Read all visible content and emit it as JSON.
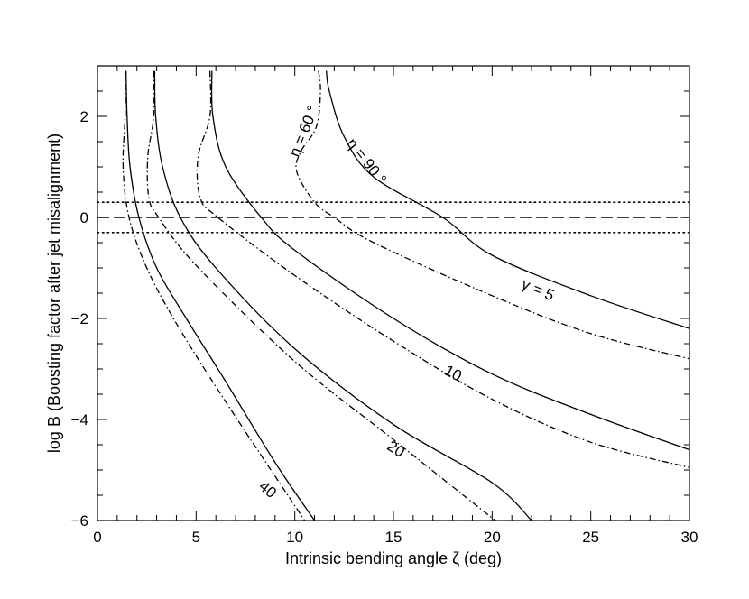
{
  "chart_data": {
    "type": "line",
    "title": "",
    "xlabel": "Intrinsic bending angle ζ (deg)",
    "ylabel": "log B (Boosting factor after jet misalignment)",
    "xlim": [
      0,
      30
    ],
    "ylim": [
      -6,
      3
    ],
    "x_ticks": [
      0,
      5,
      10,
      15,
      20,
      25,
      30
    ],
    "y_ticks": [
      -6,
      -4,
      -2,
      0,
      2
    ],
    "grid": false,
    "legend": "none",
    "reference_lines": [
      {
        "y": 0,
        "style": "dashed"
      },
      {
        "y": 0.3,
        "style": "dotted"
      },
      {
        "y": -0.3,
        "style": "dotted"
      }
    ],
    "series": [
      {
        "line_style": "solid",
        "points": [
          [
            11.6,
            2.9
          ],
          [
            11.75,
            2.5
          ],
          [
            12.5,
            1.6
          ],
          [
            14,
            0.8
          ],
          [
            17.5,
            0
          ],
          [
            20,
            -0.75
          ],
          [
            25,
            -1.55
          ],
          [
            30,
            -2.2
          ]
        ]
      },
      {
        "line_style": "dashdot",
        "points": [
          [
            11.2,
            2.9
          ],
          [
            11.3,
            2.5
          ],
          [
            11.1,
            1.8
          ],
          [
            10.3,
            1.3
          ],
          [
            10.1,
            0.9
          ],
          [
            11,
            0.3
          ],
          [
            12,
            0
          ],
          [
            14,
            -0.5
          ],
          [
            20,
            -1.55
          ],
          [
            25,
            -2.3
          ],
          [
            30,
            -2.8
          ]
        ]
      },
      {
        "line_style": "solid",
        "points": [
          [
            5.8,
            2.9
          ],
          [
            5.85,
            2
          ],
          [
            6.5,
            1
          ],
          [
            8.3,
            0
          ],
          [
            10,
            -0.65
          ],
          [
            15,
            -2
          ],
          [
            20,
            -3.1
          ],
          [
            25,
            -3.9
          ],
          [
            30,
            -4.6
          ]
        ]
      },
      {
        "line_style": "dashdot",
        "points": [
          [
            5.7,
            2.9
          ],
          [
            5.7,
            2
          ],
          [
            5.1,
            1.2
          ],
          [
            5.2,
            0.4
          ],
          [
            6.1,
            0
          ],
          [
            10,
            -1.15
          ],
          [
            15,
            -2.45
          ],
          [
            20,
            -3.6
          ],
          [
            25,
            -4.45
          ],
          [
            30,
            -4.95
          ]
        ]
      },
      {
        "line_style": "solid",
        "points": [
          [
            2.9,
            2.9
          ],
          [
            2.95,
            2
          ],
          [
            3.3,
            1
          ],
          [
            4.2,
            0
          ],
          [
            6,
            -1
          ],
          [
            10,
            -2.6
          ],
          [
            15,
            -4.1
          ],
          [
            20,
            -5.25
          ],
          [
            22,
            -6
          ]
        ]
      },
      {
        "line_style": "dashdot",
        "points": [
          [
            2.85,
            2.9
          ],
          [
            2.85,
            2
          ],
          [
            2.55,
            1.2
          ],
          [
            2.6,
            0.4
          ],
          [
            3.1,
            0
          ],
          [
            5,
            -0.95
          ],
          [
            10,
            -2.85
          ],
          [
            15,
            -4.4
          ],
          [
            20,
            -5.95
          ],
          [
            20.2,
            -6
          ]
        ]
      },
      {
        "line_style": "solid",
        "points": [
          [
            1.45,
            2.9
          ],
          [
            1.5,
            2
          ],
          [
            1.65,
            1
          ],
          [
            2.1,
            0
          ],
          [
            3,
            -1
          ],
          [
            4.5,
            -2
          ],
          [
            6.5,
            -3.25
          ],
          [
            9,
            -4.85
          ],
          [
            11,
            -6
          ]
        ]
      },
      {
        "line_style": "dashdot",
        "points": [
          [
            1.4,
            2.9
          ],
          [
            1.4,
            2
          ],
          [
            1.3,
            1
          ],
          [
            1.6,
            0
          ],
          [
            2.5,
            -1
          ],
          [
            4,
            -2.1
          ],
          [
            6.5,
            -3.65
          ],
          [
            10.5,
            -6
          ]
        ]
      }
    ],
    "annotations": [
      {
        "text": "η = 60 °",
        "x": 10.5,
        "y": 1.7,
        "rotate": -68
      },
      {
        "text": "η = 90 °",
        "x": 13.6,
        "y": 1.1,
        "rotate": 52
      },
      {
        "text": "γ = 5",
        "x": 22.3,
        "y": -1.45,
        "rotate": 23
      },
      {
        "text": "10",
        "x": 18,
        "y": -3.1,
        "rotate": 27
      },
      {
        "text": "20",
        "x": 15.1,
        "y": -4.6,
        "rotate": 33
      },
      {
        "text": "40",
        "x": 8.6,
        "y": -5.4,
        "rotate": 40
      }
    ]
  }
}
